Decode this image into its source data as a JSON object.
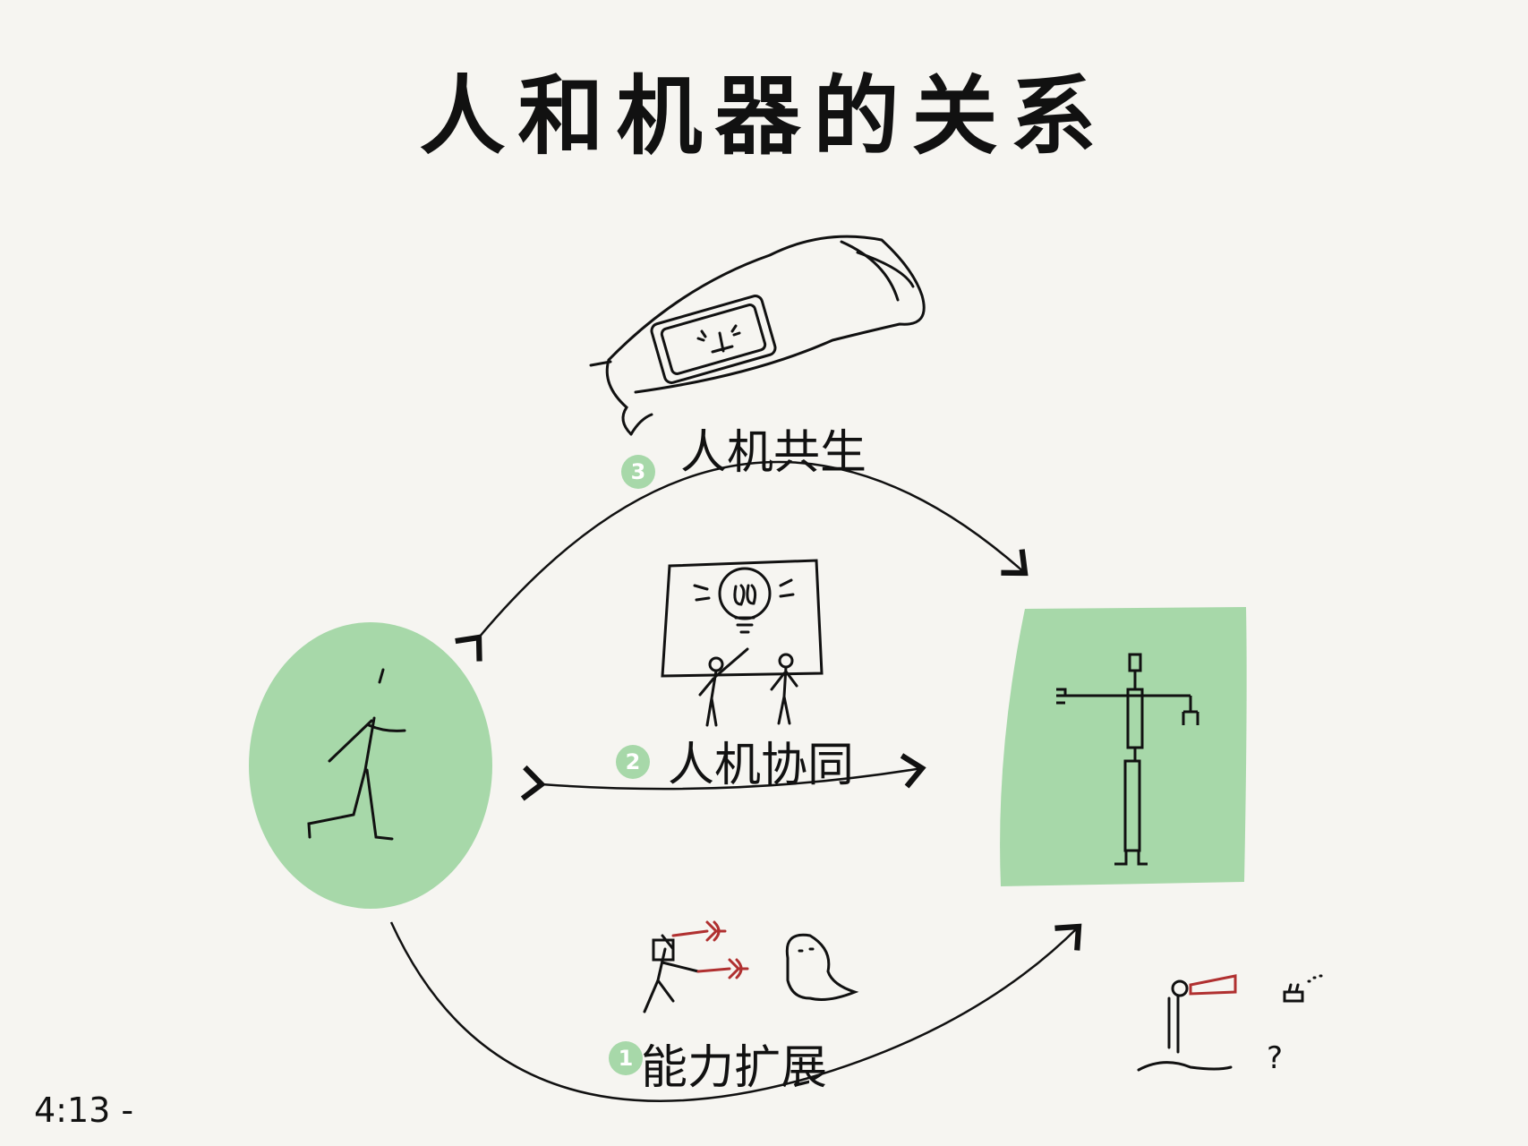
{
  "title": "人和机器的关系",
  "stages": [
    {
      "number": "1",
      "label": "能力扩展"
    },
    {
      "number": "2",
      "label": "人机协同"
    },
    {
      "number": "3",
      "label": "人机共生"
    }
  ],
  "footer_note": "4:13 -",
  "question_mark": "?",
  "colors": {
    "background": "#f6f5f1",
    "green": "#a7d8a9",
    "ink": "#111111",
    "red": "#b03030"
  }
}
